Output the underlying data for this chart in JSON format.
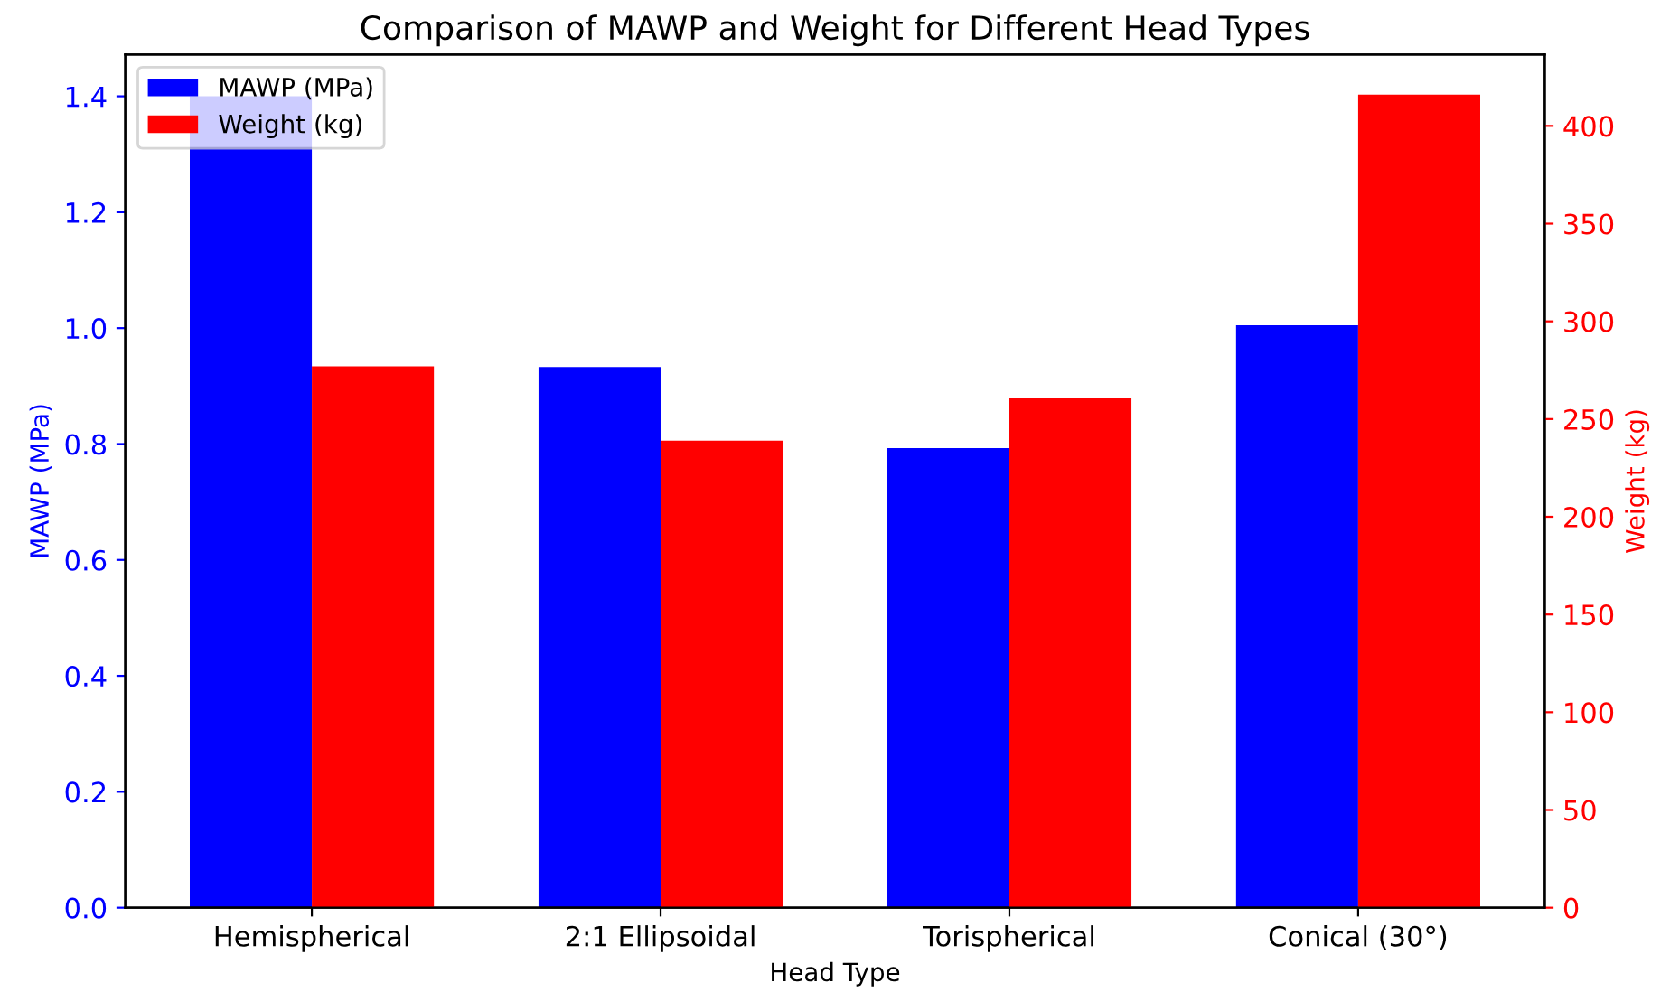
{
  "chart_data": {
    "type": "bar",
    "title": "Comparison of MAWP and Weight for Different Head Types",
    "xlabel": "Head Type",
    "ylabel": "MAWP (MPa)",
    "y2label": "Weight (kg)",
    "categories": [
      "Hemispherical",
      "2:1 Ellipsoidal",
      "Torispherical",
      "Conical (30°)"
    ],
    "series": [
      {
        "name": "MAWP (MPa)",
        "color": "#0000ff",
        "values": [
          1.4,
          0.933,
          0.793,
          1.005
        ]
      },
      {
        "name": "Weight (kg)",
        "color": "#ff0000",
        "axis": "y2",
        "values": [
          277,
          239,
          261,
          416
        ]
      }
    ],
    "ylim": [
      0,
      1.472
    ],
    "yticks": [
      {
        "value": 0,
        "label": "0.0"
      },
      0.2,
      0.4,
      0.6,
      0.8,
      {
        "value": 1,
        "label": "1.0"
      },
      1.2,
      1.4
    ],
    "y2lim": [
      0,
      436.5
    ],
    "y2ticks": [
      0,
      50,
      100,
      150,
      200,
      250,
      300,
      350,
      400
    ],
    "legend": "top left"
  }
}
